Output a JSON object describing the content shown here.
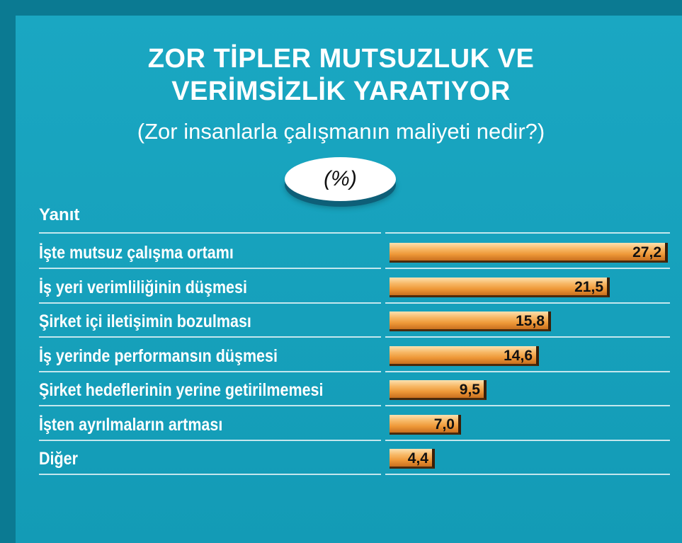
{
  "chart_data": {
    "type": "bar",
    "orientation": "horizontal",
    "title": [
      "ZOR TİPLER MUTSUZLUK VE",
      "VERİMSİZLİK YARATIYOR"
    ],
    "subtitle": "(Zor insanlarla çalışmanın maliyeti nedir?)",
    "unit_label": "(%)",
    "column_header": "Yanıt",
    "categories": [
      "İşte mutsuz çalışma ortamı",
      "İş yeri verimliliğinin düşmesi",
      "Şirket içi iletişimin bozulması",
      "İş yerinde performansın düşmesi",
      "Şirket hedeflerinin yerine getirilmemesi",
      "İşten ayrılmaların artması",
      "Diğer"
    ],
    "values": [
      27.2,
      21.5,
      15.8,
      14.6,
      9.5,
      7.0,
      4.4
    ],
    "value_labels": [
      "27,2",
      "21,5",
      "15,8",
      "14,6",
      "9,5",
      "7,0",
      "4,4"
    ],
    "xlim": [
      0,
      27.2
    ],
    "grid": false,
    "legend": "none"
  },
  "colors": {
    "background": "#1296b0",
    "bar": "#f2a545",
    "text": "#ffffff"
  }
}
